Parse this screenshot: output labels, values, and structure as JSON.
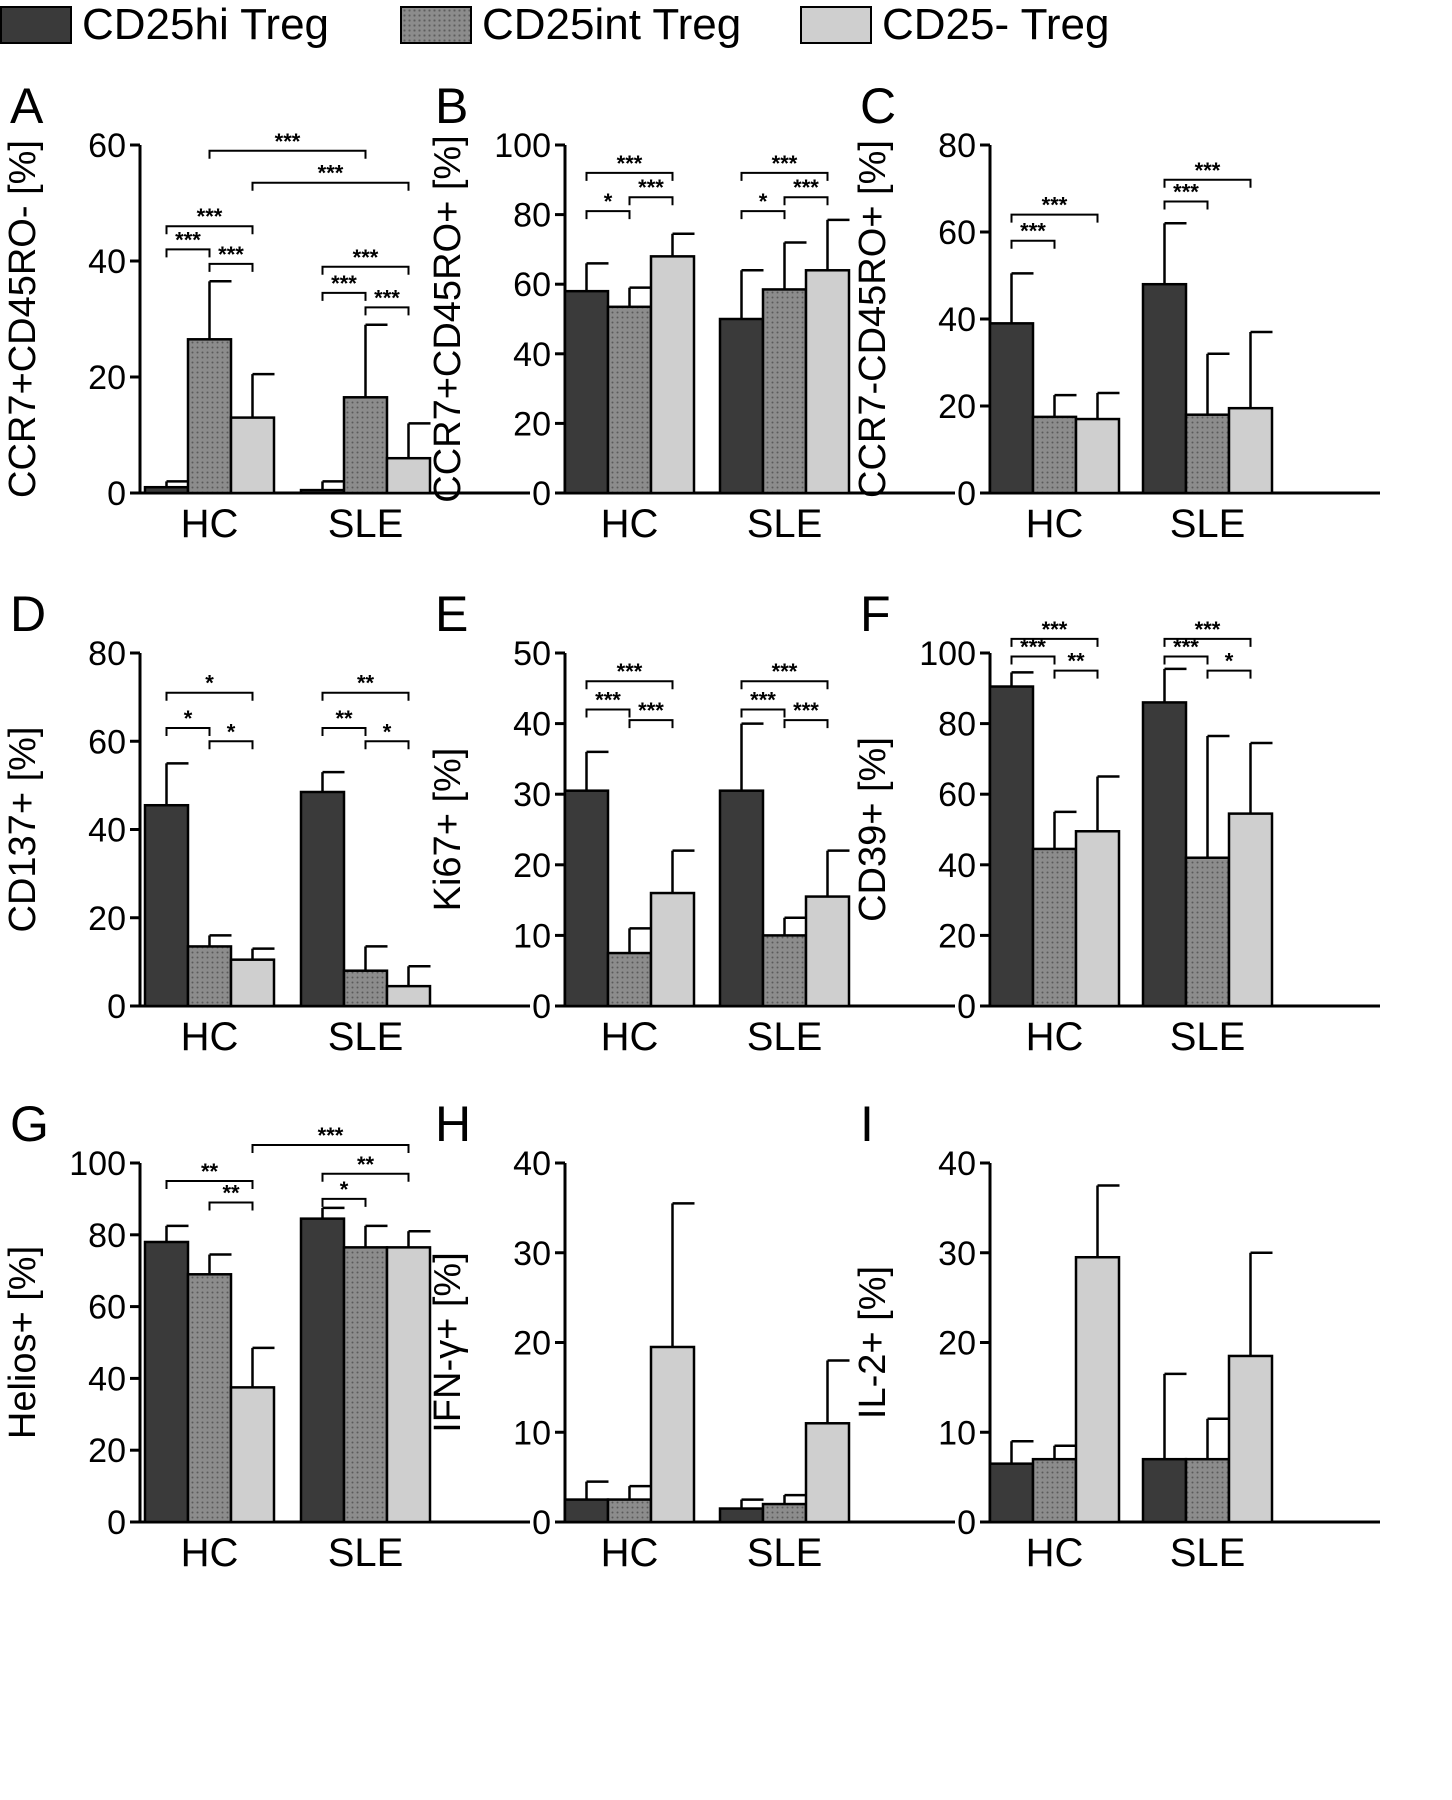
{
  "legend": [
    {
      "label": "CD25hi Treg",
      "fill": "#3a3a3a"
    },
    {
      "label": "CD25int Treg",
      "fill": "#8c8c8c"
    },
    {
      "label": "CD25- Treg",
      "fill": "#cfcfcf"
    }
  ],
  "colors": {
    "axis": "#000000",
    "bar_stroke": "#000000",
    "cd25hi": "#3a3a3a",
    "cd25int": "#8c8c8c",
    "cd25neg": "#cfcfcf"
  },
  "chart_data": [
    {
      "panel": "A",
      "type": "bar",
      "ylabel": "CCR7+CD45RO- [%]",
      "ylim": [
        0,
        60
      ],
      "yticks": [
        "0",
        "20",
        "40",
        "60"
      ],
      "categories": [
        "HC",
        "SLE"
      ],
      "series": [
        {
          "name": "CD25hi Treg",
          "values": [
            1,
            0.5
          ],
          "errors": [
            1,
            1.5
          ]
        },
        {
          "name": "CD25int Treg",
          "values": [
            26.5,
            16.5
          ],
          "errors": [
            10,
            12.5
          ]
        },
        {
          "name": "CD25- Treg",
          "values": [
            13,
            6
          ],
          "errors": [
            7.5,
            6
          ]
        }
      ],
      "significance": [
        {
          "label": "***",
          "group": 0,
          "from": 0,
          "to": 1,
          "y": 42
        },
        {
          "label": "***",
          "group": 0,
          "from": 1,
          "to": 2,
          "y": 39.5
        },
        {
          "label": "***",
          "group": 0,
          "from": 0,
          "to": 2,
          "y": 46
        },
        {
          "label": "***",
          "group": 1,
          "from": 0,
          "to": 1,
          "y": 34.5
        },
        {
          "label": "***",
          "group": 1,
          "from": 1,
          "to": 2,
          "y": 32
        },
        {
          "label": "***",
          "group": 1,
          "from": 0,
          "to": 2,
          "y": 39
        },
        {
          "label": "***",
          "cross": [
            [
              0,
              1
            ],
            [
              1,
              1
            ]
          ],
          "y": 59
        },
        {
          "label": "***",
          "cross": [
            [
              0,
              2
            ],
            [
              1,
              2
            ]
          ],
          "y": 53.5
        }
      ]
    },
    {
      "panel": "B",
      "type": "bar",
      "ylabel": "CCR7+CD45RO+ [%]",
      "ylim": [
        0,
        100
      ],
      "yticks": [
        "0",
        "20",
        "40",
        "60",
        "80",
        "100"
      ],
      "categories": [
        "HC",
        "SLE"
      ],
      "series": [
        {
          "name": "CD25hi Treg",
          "values": [
            58,
            50
          ],
          "errors": [
            8,
            14
          ]
        },
        {
          "name": "CD25int Treg",
          "values": [
            53.5,
            58.5
          ],
          "errors": [
            5.5,
            13.5
          ]
        },
        {
          "name": "CD25- Treg",
          "values": [
            68,
            64
          ],
          "errors": [
            6.5,
            14.5
          ]
        }
      ],
      "significance": [
        {
          "label": "*",
          "group": 0,
          "from": 0,
          "to": 1,
          "y": 81
        },
        {
          "label": "***",
          "group": 0,
          "from": 1,
          "to": 2,
          "y": 85
        },
        {
          "label": "***",
          "group": 0,
          "from": 0,
          "to": 2,
          "y": 92
        },
        {
          "label": "*",
          "group": 1,
          "from": 0,
          "to": 1,
          "y": 81
        },
        {
          "label": "***",
          "group": 1,
          "from": 1,
          "to": 2,
          "y": 85
        },
        {
          "label": "***",
          "group": 1,
          "from": 0,
          "to": 2,
          "y": 92
        }
      ]
    },
    {
      "panel": "C",
      "type": "bar",
      "ylabel": "CCR7-CD45RO+ [%]",
      "ylim": [
        0,
        80
      ],
      "yticks": [
        "0",
        "20",
        "40",
        "60",
        "80"
      ],
      "categories": [
        "HC",
        "SLE"
      ],
      "series": [
        {
          "name": "CD25hi Treg",
          "values": [
            39,
            48
          ],
          "errors": [
            11.5,
            14
          ]
        },
        {
          "name": "CD25int Treg",
          "values": [
            17.5,
            18
          ],
          "errors": [
            5,
            14
          ]
        },
        {
          "name": "CD25- Treg",
          "values": [
            17,
            19.5
          ],
          "errors": [
            6,
            17.5
          ]
        }
      ],
      "significance": [
        {
          "label": "***",
          "group": 0,
          "from": 0,
          "to": 1,
          "y": 58
        },
        {
          "label": "***",
          "group": 0,
          "from": 0,
          "to": 2,
          "y": 64
        },
        {
          "label": "***",
          "group": 1,
          "from": 0,
          "to": 1,
          "y": 67
        },
        {
          "label": "***",
          "group": 1,
          "from": 0,
          "to": 2,
          "y": 72
        }
      ]
    },
    {
      "panel": "D",
      "type": "bar",
      "ylabel": "CD137+ [%]",
      "ylim": [
        0,
        80
      ],
      "yticks": [
        "0",
        "20",
        "40",
        "60",
        "80"
      ],
      "categories": [
        "HC",
        "SLE"
      ],
      "series": [
        {
          "name": "CD25hi Treg",
          "values": [
            45.5,
            48.5
          ],
          "errors": [
            9.5,
            4.5
          ]
        },
        {
          "name": "CD25int Treg",
          "values": [
            13.5,
            8
          ],
          "errors": [
            2.5,
            5.5
          ]
        },
        {
          "name": "CD25- Treg",
          "values": [
            10.5,
            4.5
          ],
          "errors": [
            2.5,
            4.5
          ]
        }
      ],
      "significance": [
        {
          "label": "*",
          "group": 0,
          "from": 0,
          "to": 1,
          "y": 63
        },
        {
          "label": "*",
          "group": 0,
          "from": 1,
          "to": 2,
          "y": 60
        },
        {
          "label": "*",
          "group": 0,
          "from": 0,
          "to": 2,
          "y": 71
        },
        {
          "label": "**",
          "group": 1,
          "from": 0,
          "to": 1,
          "y": 63
        },
        {
          "label": "*",
          "group": 1,
          "from": 1,
          "to": 2,
          "y": 60
        },
        {
          "label": "**",
          "group": 1,
          "from": 0,
          "to": 2,
          "y": 71
        }
      ]
    },
    {
      "panel": "E",
      "type": "bar",
      "ylabel": "Ki67+ [%]",
      "ylim": [
        0,
        50
      ],
      "yticks": [
        "0",
        "10",
        "20",
        "30",
        "40",
        "50"
      ],
      "categories": [
        "HC",
        "SLE"
      ],
      "series": [
        {
          "name": "CD25hi Treg",
          "values": [
            30.5,
            30.5
          ],
          "errors": [
            5.5,
            9.5
          ]
        },
        {
          "name": "CD25int Treg",
          "values": [
            7.5,
            10
          ],
          "errors": [
            3.5,
            2.5
          ]
        },
        {
          "name": "CD25- Treg",
          "values": [
            16,
            15.5
          ],
          "errors": [
            6,
            6.5
          ]
        }
      ],
      "significance": [
        {
          "label": "***",
          "group": 0,
          "from": 0,
          "to": 1,
          "y": 42
        },
        {
          "label": "***",
          "group": 0,
          "from": 1,
          "to": 2,
          "y": 40.5
        },
        {
          "label": "***",
          "group": 0,
          "from": 0,
          "to": 2,
          "y": 46
        },
        {
          "label": "***",
          "group": 1,
          "from": 0,
          "to": 1,
          "y": 42
        },
        {
          "label": "***",
          "group": 1,
          "from": 1,
          "to": 2,
          "y": 40.5
        },
        {
          "label": "***",
          "group": 1,
          "from": 0,
          "to": 2,
          "y": 46
        }
      ]
    },
    {
      "panel": "F",
      "type": "bar",
      "ylabel": "CD39+ [%]",
      "ylim": [
        0,
        100
      ],
      "yticks": [
        "0",
        "20",
        "40",
        "60",
        "80",
        "100"
      ],
      "categories": [
        "HC",
        "SLE"
      ],
      "series": [
        {
          "name": "CD25hi Treg",
          "values": [
            90.5,
            86
          ],
          "errors": [
            4,
            9.5
          ]
        },
        {
          "name": "CD25int Treg",
          "values": [
            44.5,
            42
          ],
          "errors": [
            10.5,
            34.5
          ]
        },
        {
          "name": "CD25- Treg",
          "values": [
            49.5,
            54.5
          ],
          "errors": [
            15.5,
            20
          ]
        }
      ],
      "significance": [
        {
          "label": "***",
          "group": 0,
          "from": 0,
          "to": 1,
          "y": 99
        },
        {
          "label": "**",
          "group": 0,
          "from": 1,
          "to": 2,
          "y": 95
        },
        {
          "label": "***",
          "group": 0,
          "from": 0,
          "to": 2,
          "y": 104
        },
        {
          "label": "***",
          "group": 1,
          "from": 0,
          "to": 1,
          "y": 99
        },
        {
          "label": "*",
          "group": 1,
          "from": 1,
          "to": 2,
          "y": 95
        },
        {
          "label": "***",
          "group": 1,
          "from": 0,
          "to": 2,
          "y": 104
        }
      ]
    },
    {
      "panel": "G",
      "type": "bar",
      "ylabel": "Helios+ [%]",
      "ylim": [
        0,
        100
      ],
      "yticks": [
        "0",
        "20",
        "40",
        "60",
        "80",
        "100"
      ],
      "categories": [
        "HC",
        "SLE"
      ],
      "series": [
        {
          "name": "CD25hi Treg",
          "values": [
            78,
            84.5
          ],
          "errors": [
            4.5,
            3
          ]
        },
        {
          "name": "CD25int Treg",
          "values": [
            69,
            76.5
          ],
          "errors": [
            5.5,
            6
          ]
        },
        {
          "name": "CD25- Treg",
          "values": [
            37.5,
            76.5
          ],
          "errors": [
            11,
            4.5
          ]
        }
      ],
      "significance": [
        {
          "label": "**",
          "group": 0,
          "from": 1,
          "to": 2,
          "y": 89
        },
        {
          "label": "**",
          "group": 0,
          "from": 0,
          "to": 2,
          "y": 95
        },
        {
          "label": "*",
          "group": 1,
          "from": 0,
          "to": 1,
          "y": 90
        },
        {
          "label": "**",
          "group": 1,
          "from": 0,
          "to": 2,
          "y": 97
        },
        {
          "label": "***",
          "cross": [
            [
              0,
              2
            ],
            [
              1,
              2
            ]
          ],
          "y": 105
        }
      ]
    },
    {
      "panel": "H",
      "type": "bar",
      "ylabel": "IFN-γ+ [%]",
      "ylim": [
        0,
        40
      ],
      "yticks": [
        "0",
        "10",
        "20",
        "30",
        "40"
      ],
      "categories": [
        "HC",
        "SLE"
      ],
      "series": [
        {
          "name": "CD25hi Treg",
          "values": [
            2.5,
            1.5
          ],
          "errors": [
            2,
            1
          ]
        },
        {
          "name": "CD25int Treg",
          "values": [
            2.5,
            2
          ],
          "errors": [
            1.5,
            1
          ]
        },
        {
          "name": "CD25- Treg",
          "values": [
            19.5,
            11
          ],
          "errors": [
            16,
            7
          ]
        }
      ],
      "significance": []
    },
    {
      "panel": "I",
      "type": "bar",
      "ylabel": "IL-2+ [%]",
      "ylim": [
        0,
        40
      ],
      "yticks": [
        "0",
        "10",
        "20",
        "30",
        "40"
      ],
      "categories": [
        "HC",
        "SLE"
      ],
      "series": [
        {
          "name": "CD25hi Treg",
          "values": [
            6.5,
            7
          ],
          "errors": [
            2.5,
            9.5
          ]
        },
        {
          "name": "CD25int Treg",
          "values": [
            7,
            7
          ],
          "errors": [
            1.5,
            4.5
          ]
        },
        {
          "name": "CD25- Treg",
          "values": [
            29.5,
            18.5
          ],
          "errors": [
            8,
            11.5
          ]
        }
      ],
      "significance": []
    }
  ]
}
